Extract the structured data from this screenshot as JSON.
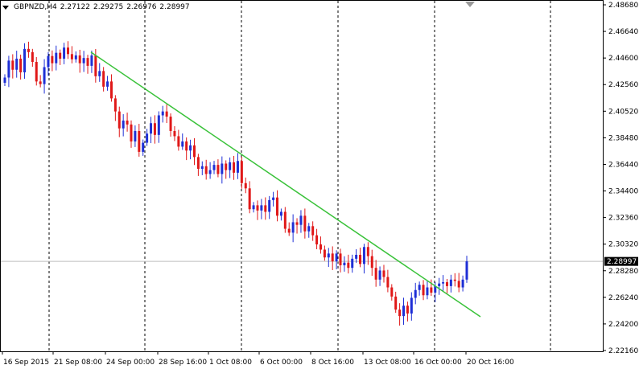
{
  "header": {
    "symbol": "GBPNZD,H4",
    "open": "2.27122",
    "high": "2.29275",
    "low": "2.26976",
    "close": "2.28997"
  },
  "chart_data": {
    "type": "candlestick",
    "symbol": "GBPNZD",
    "timeframe": "H4",
    "y_ticks": [
      "2.48680",
      "2.46640",
      "2.44600",
      "2.42560",
      "2.40520",
      "2.38480",
      "2.36440",
      "2.34400",
      "2.32360",
      "2.30320",
      "2.28280",
      "2.26240",
      "2.24200",
      "2.22160"
    ],
    "x_ticks": [
      "16 Sep 2015",
      "21 Sep 08:00",
      "24 Sep 00:00",
      "28 Sep 16:00",
      "1 Oct 08:00",
      "6 Oct 00:00",
      "8 Oct 16:00",
      "13 Oct 08:00",
      "16 Oct 00:00",
      "20 Oct 16:00"
    ],
    "ylim": [
      2.2216,
      2.4868
    ],
    "current_price": "2.28997",
    "grid": "vertical dashed period separators",
    "colors": {
      "bull": "#1e2fd6",
      "bear": "#e01818",
      "trendline": "#3ac23a",
      "price_line": "#bdbdbd"
    },
    "trendline": {
      "start": 2.4505,
      "end": 2.2475
    },
    "closes": [
      2.431,
      2.444,
      2.437,
      2.4455,
      2.435,
      2.453,
      2.4505,
      2.443,
      2.428,
      2.426,
      2.439,
      2.4475,
      2.442,
      2.45,
      2.4455,
      2.454,
      2.449,
      2.445,
      2.448,
      2.442,
      2.446,
      2.44,
      2.448,
      2.432,
      2.436,
      2.424,
      2.428,
      2.415,
      2.405,
      2.392,
      2.398,
      2.395,
      2.382,
      2.39,
      2.374,
      2.381,
      2.388,
      2.396,
      2.387,
      2.402,
      2.405,
      2.401,
      2.39,
      2.386,
      2.378,
      2.382,
      2.375,
      2.379,
      2.37,
      2.361,
      2.363,
      2.357,
      2.36,
      2.364,
      2.357,
      2.365,
      2.36,
      2.366,
      2.358,
      2.367,
      2.35,
      2.346,
      2.33,
      2.333,
      2.329,
      2.333,
      2.328,
      2.337,
      2.339,
      2.325,
      2.328,
      2.315,
      2.312,
      2.32,
      2.318,
      2.325,
      2.313,
      2.317,
      2.31,
      2.303,
      2.299,
      2.293,
      2.296,
      2.29,
      2.296,
      2.287,
      2.289,
      2.285,
      2.292,
      2.295,
      2.288,
      2.301,
      2.294,
      2.285,
      2.276,
      2.283,
      2.278,
      2.27,
      2.263,
      2.253,
      2.248,
      2.256,
      2.25,
      2.262,
      2.268,
      2.272,
      2.264,
      2.27,
      2.266,
      2.271,
      2.273,
      2.274,
      2.271,
      2.276,
      2.275,
      2.27,
      2.276,
      2.29
    ]
  }
}
